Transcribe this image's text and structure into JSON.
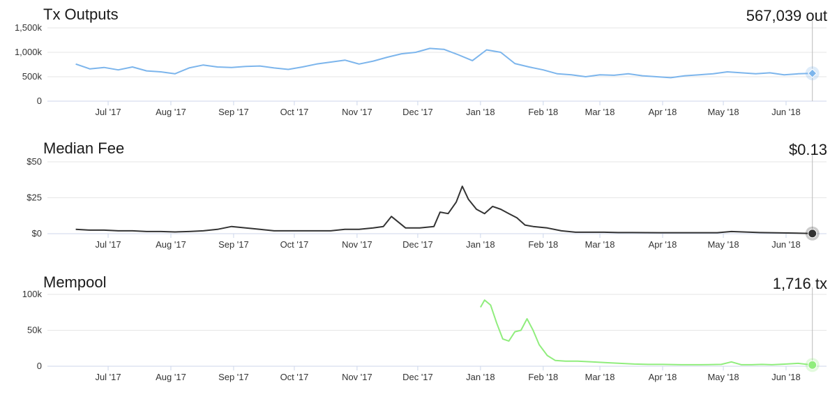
{
  "x_ticks": [
    "Jul '17",
    "Aug '17",
    "Sep '17",
    "Oct '17",
    "Nov '17",
    "Dec '17",
    "Jan '18",
    "Feb '18",
    "Mar '18",
    "Apr '18",
    "May '18",
    "Jun '18"
  ],
  "chart_data": [
    {
      "type": "line",
      "title": "Tx Outputs",
      "current_value": "567,039 out",
      "color": "#7cb5ec",
      "yticks": [
        "0",
        "500k",
        "1,000k",
        "1,500k"
      ],
      "ylim": [
        0,
        1500000
      ],
      "x": [
        "2017-06-15",
        "2017-06-22",
        "2017-06-29",
        "2017-07-06",
        "2017-07-13",
        "2017-07-20",
        "2017-07-27",
        "2017-08-03",
        "2017-08-10",
        "2017-08-17",
        "2017-08-24",
        "2017-08-31",
        "2017-09-07",
        "2017-09-14",
        "2017-09-21",
        "2017-09-28",
        "2017-10-05",
        "2017-10-12",
        "2017-10-19",
        "2017-10-26",
        "2017-11-02",
        "2017-11-09",
        "2017-11-16",
        "2017-11-23",
        "2017-11-30",
        "2017-12-07",
        "2017-12-14",
        "2017-12-21",
        "2017-12-28",
        "2018-01-04",
        "2018-01-11",
        "2018-01-18",
        "2018-01-25",
        "2018-02-01",
        "2018-02-08",
        "2018-02-15",
        "2018-02-22",
        "2018-03-01",
        "2018-03-08",
        "2018-03-15",
        "2018-03-22",
        "2018-03-29",
        "2018-04-05",
        "2018-04-12",
        "2018-04-19",
        "2018-04-26",
        "2018-05-03",
        "2018-05-10",
        "2018-05-17",
        "2018-05-24",
        "2018-05-31",
        "2018-06-07",
        "2018-06-14"
      ],
      "values": [
        760000,
        660000,
        690000,
        640000,
        700000,
        620000,
        600000,
        560000,
        680000,
        740000,
        700000,
        690000,
        710000,
        720000,
        680000,
        650000,
        700000,
        760000,
        800000,
        840000,
        760000,
        820000,
        900000,
        970000,
        1000000,
        1080000,
        1060000,
        950000,
        830000,
        1050000,
        1000000,
        770000,
        700000,
        640000,
        560000,
        540000,
        500000,
        540000,
        530000,
        560000,
        520000,
        500000,
        480000,
        520000,
        540000,
        560000,
        600000,
        580000,
        560000,
        580000,
        540000,
        560000,
        570000
      ]
    },
    {
      "type": "line",
      "title": "Median Fee",
      "current_value": "$0.13",
      "color": "#333333",
      "yticks": [
        "$0",
        "$25",
        "$50"
      ],
      "ylim": [
        0,
        50
      ],
      "x": [
        "2017-06-15",
        "2017-06-22",
        "2017-06-29",
        "2017-07-06",
        "2017-07-13",
        "2017-07-20",
        "2017-07-27",
        "2017-08-03",
        "2017-08-10",
        "2017-08-17",
        "2017-08-24",
        "2017-08-31",
        "2017-09-07",
        "2017-09-14",
        "2017-09-21",
        "2017-09-28",
        "2017-10-05",
        "2017-10-12",
        "2017-10-19",
        "2017-10-26",
        "2017-11-02",
        "2017-11-09",
        "2017-11-14",
        "2017-11-18",
        "2017-11-25",
        "2017-12-02",
        "2017-12-09",
        "2017-12-12",
        "2017-12-16",
        "2017-12-20",
        "2017-12-23",
        "2017-12-26",
        "2017-12-30",
        "2018-01-03",
        "2018-01-07",
        "2018-01-11",
        "2018-01-15",
        "2018-01-19",
        "2018-01-23",
        "2018-01-27",
        "2018-02-03",
        "2018-02-10",
        "2018-02-17",
        "2018-02-24",
        "2018-03-03",
        "2018-03-10",
        "2018-03-17",
        "2018-03-31",
        "2018-04-14",
        "2018-04-28",
        "2018-05-05",
        "2018-05-19",
        "2018-06-02",
        "2018-06-14"
      ],
      "values": [
        3,
        2.5,
        2.5,
        2,
        2,
        1.5,
        1.5,
        1.2,
        1.5,
        2,
        3,
        5,
        4,
        3,
        2,
        2,
        2,
        2,
        2,
        3,
        3,
        4,
        5,
        12,
        4,
        4,
        5,
        15,
        14,
        22,
        33,
        24,
        17,
        14,
        19,
        17,
        14,
        11,
        6,
        5,
        4,
        2,
        1,
        1,
        1,
        0.8,
        0.8,
        0.7,
        0.7,
        0.7,
        1.5,
        0.8,
        0.5,
        0.13
      ]
    },
    {
      "type": "line",
      "title": "Mempool",
      "current_value": "1,716 tx",
      "color": "#90ed7d",
      "yticks": [
        "0",
        "50k",
        "100k"
      ],
      "ylim": [
        0,
        100000
      ],
      "x": [
        "2018-01-01",
        "2018-01-03",
        "2018-01-06",
        "2018-01-09",
        "2018-01-12",
        "2018-01-15",
        "2018-01-18",
        "2018-01-21",
        "2018-01-24",
        "2018-01-27",
        "2018-01-30",
        "2018-02-03",
        "2018-02-07",
        "2018-02-12",
        "2018-02-18",
        "2018-02-25",
        "2018-03-04",
        "2018-03-11",
        "2018-03-18",
        "2018-03-25",
        "2018-04-01",
        "2018-04-10",
        "2018-04-20",
        "2018-04-30",
        "2018-05-05",
        "2018-05-10",
        "2018-05-15",
        "2018-05-20",
        "2018-05-25",
        "2018-06-01",
        "2018-06-07",
        "2018-06-14"
      ],
      "values": [
        82000,
        92000,
        85000,
        60000,
        38000,
        35000,
        48000,
        50000,
        66000,
        50000,
        30000,
        15000,
        8000,
        7000,
        7000,
        6000,
        5000,
        4000,
        3000,
        2500,
        2500,
        2000,
        2000,
        2500,
        6000,
        2000,
        2000,
        2500,
        2000,
        3000,
        4000,
        1716
      ]
    }
  ]
}
